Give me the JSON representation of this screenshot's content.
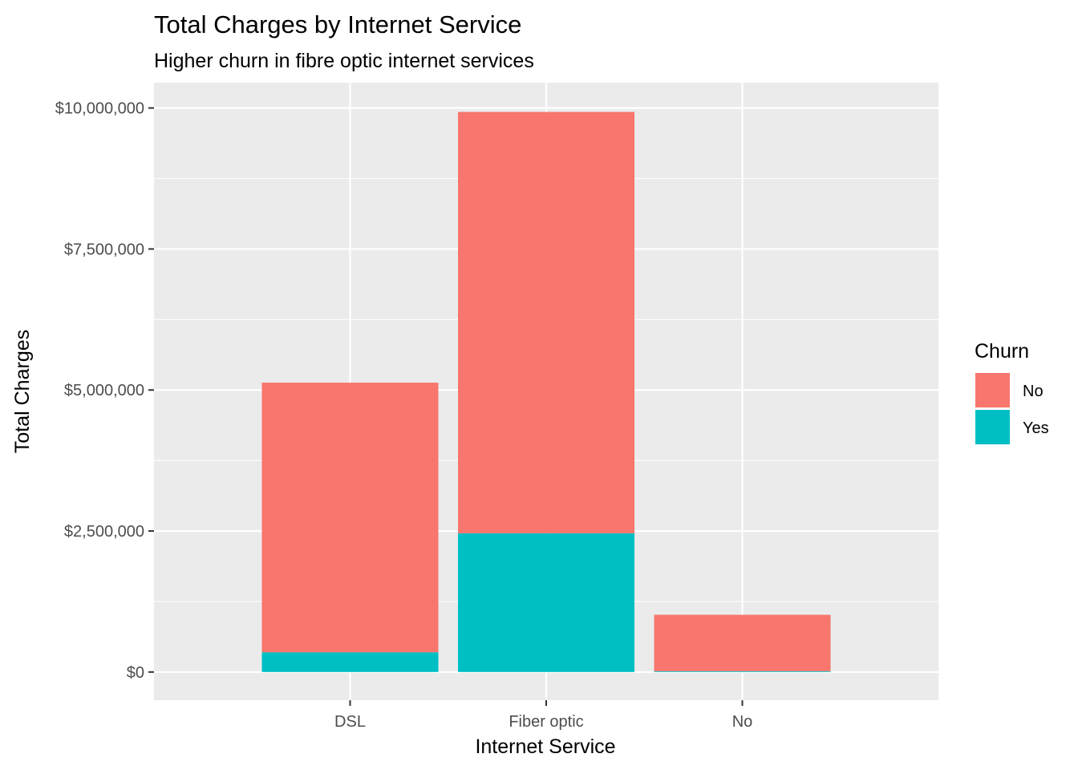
{
  "chart_data": {
    "type": "bar",
    "stacked": true,
    "title": "Total Charges by Internet Service",
    "subtitle": "Higher churn in fibre optic internet services",
    "xlabel": "Internet Service",
    "ylabel": "Total Charges",
    "categories": [
      "DSL",
      "Fiber optic",
      "No"
    ],
    "series": [
      {
        "name": "Yes",
        "color": "#00BFC4",
        "values": [
          350000,
          2460000,
          15000
        ]
      },
      {
        "name": "No",
        "color": "#F8766D",
        "values": [
          4780000,
          7470000,
          1000000
        ]
      }
    ],
    "ylim": [
      -500000,
      10450000
    ],
    "y_ticks": [
      0,
      2500000,
      5000000,
      7500000,
      10000000
    ],
    "y_tick_labels": [
      "$0",
      "$2,500,000",
      "$5,000,000",
      "$7,500,000",
      "$10,000,000"
    ],
    "grid": true,
    "legend": {
      "title": "Churn",
      "position": "right",
      "entries": [
        {
          "label": "No",
          "color": "#F8766D"
        },
        {
          "label": "Yes",
          "color": "#00BFC4"
        }
      ]
    }
  }
}
